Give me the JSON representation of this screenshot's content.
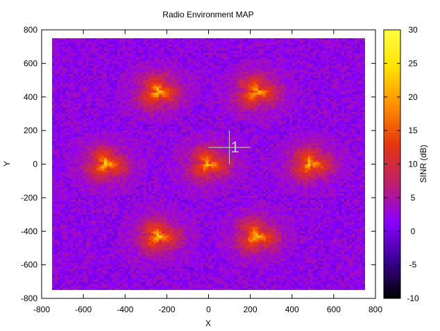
{
  "chart_data": {
    "type": "heatmap",
    "title": "Radio Environment MAP",
    "xlabel": "X",
    "ylabel": "Y",
    "xlim": [
      -800,
      800
    ],
    "ylim": [
      -800,
      800
    ],
    "x_ticks": [
      -800,
      -600,
      -400,
      -200,
      0,
      200,
      400,
      600,
      800
    ],
    "y_ticks": [
      -800,
      -600,
      -400,
      -200,
      0,
      200,
      400,
      600,
      800
    ],
    "data_extent": {
      "x": [
        -750,
        750
      ],
      "y": [
        -750,
        750
      ]
    },
    "grid": false,
    "colorbar": {
      "label": "SINR (dB)",
      "range": [
        -10,
        30
      ],
      "ticks": [
        -10,
        -5,
        0,
        5,
        10,
        15,
        20,
        25,
        30
      ],
      "colormap": [
        "#000000",
        "#3c0095",
        "#8b00ff",
        "#c0206a",
        "#e63510",
        "#ff8c00",
        "#ffe000",
        "#ffff40"
      ]
    },
    "base_level_db": 2,
    "hotspots": [
      {
        "x": -240,
        "y": 430,
        "peak_db": 20
      },
      {
        "x": 230,
        "y": 430,
        "peak_db": 20
      },
      {
        "x": -490,
        "y": 0,
        "peak_db": 20
      },
      {
        "x": 0,
        "y": 0,
        "peak_db": 19
      },
      {
        "x": 490,
        "y": 0,
        "peak_db": 20
      },
      {
        "x": -240,
        "y": -430,
        "peak_db": 20
      },
      {
        "x": 230,
        "y": -430,
        "peak_db": 20
      }
    ],
    "annotations": [
      {
        "text": "1",
        "x": 120,
        "y": 100,
        "crosshair": true
      }
    ]
  }
}
